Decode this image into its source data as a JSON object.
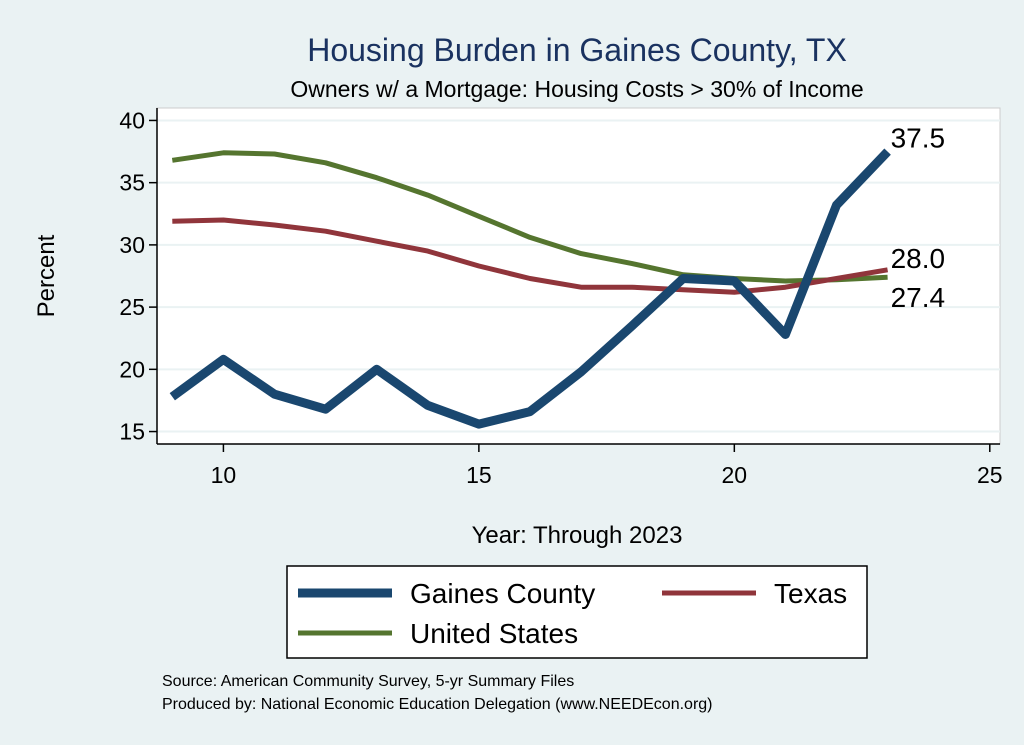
{
  "chart_data": {
    "type": "line",
    "title": "Housing Burden in Gaines County, TX",
    "subtitle": "Owners w/ a Mortgage: Housing Costs > 30% of Income",
    "xlabel": "Year: Through 2023",
    "ylabel": "Percent",
    "xlim": [
      8.7,
      25.2
    ],
    "ylim": [
      14,
      41
    ],
    "xticks": [
      10,
      15,
      20,
      25
    ],
    "yticks": [
      15,
      20,
      25,
      30,
      35,
      40
    ],
    "grid": true,
    "legend_position": "bottom",
    "x": [
      9,
      10,
      11,
      12,
      13,
      14,
      15,
      16,
      17,
      18,
      19,
      20,
      21,
      22,
      23
    ],
    "series": [
      {
        "name": "Gaines County",
        "color": "#1a476f",
        "values": [
          17.8,
          20.8,
          18.0,
          16.8,
          20.0,
          17.1,
          15.6,
          16.6,
          19.8,
          23.5,
          27.3,
          27.1,
          22.8,
          33.2,
          37.5
        ],
        "end_label": "37.5"
      },
      {
        "name": "Texas",
        "color": "#90353b",
        "values": [
          31.9,
          32.0,
          31.6,
          31.1,
          30.3,
          29.5,
          28.3,
          27.3,
          26.6,
          26.6,
          26.4,
          26.2,
          26.6,
          27.3,
          28.0
        ],
        "end_label": "28.0"
      },
      {
        "name": "United States",
        "color": "#55752f",
        "values": [
          36.8,
          37.4,
          37.3,
          36.6,
          35.4,
          34.0,
          32.3,
          30.6,
          29.3,
          28.5,
          27.6,
          27.3,
          27.1,
          27.2,
          27.4
        ],
        "end_label": "27.4"
      }
    ]
  },
  "footer": {
    "source": "Source: American Community Survey, 5-yr Summary Files",
    "produced": "Produced by: National Economic Education Delegation (www.NEEDEcon.org)"
  }
}
